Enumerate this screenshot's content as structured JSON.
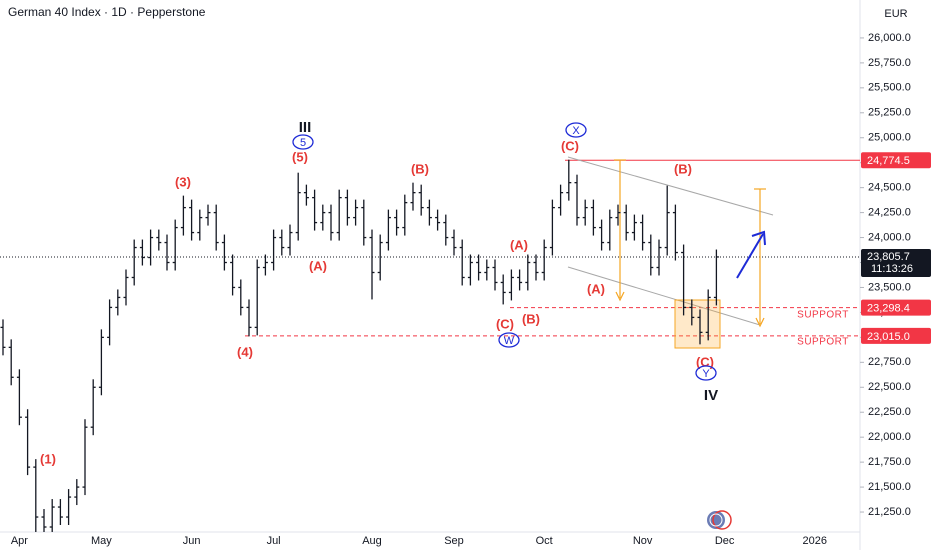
{
  "chart_data": {
    "type": "candlestick",
    "title": "German 40 Index · 1D · Pepperstone",
    "currency": "EUR",
    "color": "#131722",
    "level_color": "#f23645",
    "categories": [
      null,
      null,
      "Apr",
      null,
      null,
      null,
      null,
      null,
      null,
      null,
      null,
      null,
      "May",
      null,
      null,
      null,
      null,
      null,
      null,
      null,
      null,
      null,
      null,
      "Jun",
      null,
      null,
      null,
      null,
      null,
      null,
      null,
      null,
      null,
      "Jul",
      null,
      null,
      null,
      null,
      null,
      null,
      null,
      null,
      null,
      null,
      null,
      "Aug",
      null,
      null,
      null,
      null,
      null,
      null,
      null,
      null,
      null,
      "Sep",
      null,
      null,
      null,
      null,
      null,
      null,
      null,
      null,
      null,
      null,
      "Oct",
      null,
      null,
      null,
      null,
      null,
      null,
      null,
      null,
      null,
      null,
      null,
      "Nov",
      null,
      null,
      null,
      null,
      null,
      null,
      null,
      null,
      null,
      "Dec",
      null,
      null,
      null,
      null,
      null,
      null,
      null,
      null,
      null,
      null,
      "2026",
      null,
      null
    ],
    "open": [
      23100,
      22900,
      22600,
      22200,
      21700,
      21200,
      21100,
      21300,
      21200,
      21400,
      21500,
      22100,
      22500,
      23000,
      23300,
      23400,
      23600,
      23900,
      23800,
      24000,
      23950,
      23750,
      24100,
      24300,
      24050,
      24200,
      24250,
      23950,
      23750,
      23500,
      23300,
      23100,
      23700,
      23750,
      24000,
      23900,
      24050,
      24450,
      24400,
      24150,
      24250,
      24050,
      24400,
      24200,
      24300,
      24000,
      23650,
      23950,
      24200,
      24100,
      24350,
      24450,
      24300,
      24200,
      24150,
      24000,
      23900,
      23600,
      23750,
      23650,
      23700,
      23550,
      23450,
      23600,
      23550,
      23750,
      23650,
      23900,
      24300,
      24450,
      24550,
      24200,
      24300,
      24100,
      23950,
      24200,
      24250,
      24050,
      24150,
      23950,
      23700,
      23900,
      24250,
      23850,
      23300,
      23200,
      23050,
      23400,
      null,
      null,
      null,
      null,
      null,
      null,
      null,
      null,
      null,
      null,
      null,
      null,
      null,
      null
    ],
    "high": [
      23180,
      22980,
      22680,
      22280,
      21780,
      21280,
      21380,
      21380,
      21480,
      21580,
      22180,
      22580,
      23080,
      23380,
      23480,
      23680,
      23980,
      23980,
      24080,
      24080,
      24030,
      24180,
      24420,
      24380,
      24280,
      24330,
      24330,
      24030,
      23830,
      23580,
      23380,
      23780,
      23830,
      24080,
      24080,
      24130,
      24650,
      24530,
      24480,
      24330,
      24330,
      24480,
      24480,
      24380,
      24380,
      24080,
      24030,
      24280,
      24280,
      24430,
      24550,
      24530,
      24380,
      24280,
      24230,
      24080,
      23980,
      23830,
      23830,
      23780,
      23780,
      23630,
      23680,
      23680,
      23830,
      23830,
      23980,
      24380,
      24530,
      24780,
      24630,
      24380,
      24380,
      24180,
      24280,
      24330,
      24330,
      24230,
      24230,
      24030,
      23980,
      24520,
      24330,
      23930,
      23380,
      23280,
      23480,
      23880,
      null,
      null,
      null,
      null,
      null,
      null,
      null,
      null,
      null,
      null,
      null,
      null,
      null,
      null
    ],
    "low": [
      22820,
      22520,
      22120,
      21620,
      20950,
      21020,
      21020,
      21120,
      21120,
      21320,
      21420,
      22020,
      22420,
      22920,
      23220,
      23320,
      23520,
      23720,
      23720,
      23870,
      23670,
      23670,
      24020,
      23970,
      23970,
      24120,
      23870,
      23670,
      23420,
      23220,
      23010,
      23020,
      23620,
      23670,
      23820,
      23820,
      23970,
      24320,
      24070,
      24070,
      23970,
      23970,
      24120,
      24120,
      23920,
      23380,
      23570,
      23870,
      24020,
      24020,
      24270,
      24220,
      24120,
      24070,
      23920,
      23820,
      23520,
      23520,
      23570,
      23570,
      23470,
      23330,
      23370,
      23470,
      23470,
      23570,
      23570,
      23820,
      24220,
      24370,
      24120,
      24120,
      24020,
      23870,
      23870,
      24120,
      23970,
      23970,
      23870,
      23620,
      23620,
      23820,
      23770,
      23220,
      23120,
      22930,
      22970,
      23320,
      null,
      null,
      null,
      null,
      null,
      null,
      null,
      null,
      null,
      null,
      null,
      null,
      null,
      null
    ],
    "close": [
      22900,
      22600,
      22200,
      21700,
      21200,
      21100,
      21300,
      21200,
      21400,
      21500,
      22100,
      22500,
      23000,
      23300,
      23400,
      23600,
      23900,
      23800,
      24000,
      23950,
      23750,
      24100,
      24300,
      24050,
      24200,
      24250,
      23950,
      23750,
      23500,
      23300,
      23100,
      23700,
      23750,
      24000,
      23900,
      24050,
      24450,
      24400,
      24150,
      24250,
      24050,
      24400,
      24200,
      24300,
      24000,
      23650,
      23950,
      24200,
      24100,
      24350,
      24450,
      24300,
      24200,
      24150,
      24000,
      23900,
      23600,
      23750,
      23650,
      23700,
      23550,
      23450,
      23600,
      23550,
      23750,
      23650,
      23900,
      24300,
      24450,
      24550,
      24200,
      24300,
      24100,
      23950,
      24200,
      24250,
      24050,
      24150,
      23950,
      23700,
      23900,
      24250,
      23850,
      23300,
      23200,
      23050,
      23400,
      23805.7,
      null,
      null,
      null,
      null,
      null,
      null,
      null,
      null,
      null,
      null,
      null,
      null,
      null,
      null
    ],
    "ylim": [
      21050,
      26380
    ],
    "yticks": [
      {
        "value": 21250,
        "label": "21,250.0"
      },
      {
        "value": 21500,
        "label": "21,500.0"
      },
      {
        "value": 21750,
        "label": "21,750.0"
      },
      {
        "value": 22000,
        "label": "22,000.0"
      },
      {
        "value": 22250,
        "label": "22,250.0"
      },
      {
        "value": 22500,
        "label": "22,500.0"
      },
      {
        "value": 22750,
        "label": "22,750.0"
      },
      {
        "value": 23000,
        "label": "23,000.0"
      },
      {
        "value": 23250,
        "label": "23,250.0"
      },
      {
        "value": 23500,
        "label": "23,500.0"
      },
      {
        "value": 23750,
        "label": "23,750.0"
      },
      {
        "value": 24000,
        "label": "24,000.0"
      },
      {
        "value": 24250,
        "label": "24,250.0"
      },
      {
        "value": 24500,
        "label": "24,500.0"
      },
      {
        "value": 24750,
        "label": "24,750.0"
      },
      {
        "value": 25000,
        "label": "25,000.0"
      },
      {
        "value": 25250,
        "label": "25,250.0"
      },
      {
        "value": 25500,
        "label": "25,500.0"
      },
      {
        "value": 25750,
        "label": "25,750.0"
      },
      {
        "value": 26000,
        "label": "26,000.0"
      }
    ],
    "price_levels": [
      {
        "value": 24774.5,
        "label": "24,774.5"
      },
      {
        "value": 23298.4,
        "label": "23,298.4"
      },
      {
        "value": 23015.0,
        "label": "23,015.0"
      }
    ],
    "last_price": {
      "value": 23805.7,
      "label": "23,805.7"
    },
    "countdown": "11:13:26",
    "support_labels": [
      "SUPPORT",
      "SUPPORT"
    ],
    "wave_labels": [
      "(1)",
      "(3)",
      "(4)",
      "III",
      "5",
      "(5)",
      "(A)",
      "(B)",
      "(A)",
      "(C)",
      "(B)",
      "W",
      "X",
      "(C)",
      "(A)",
      "(B)",
      "(C)",
      "Y",
      "IV"
    ]
  }
}
